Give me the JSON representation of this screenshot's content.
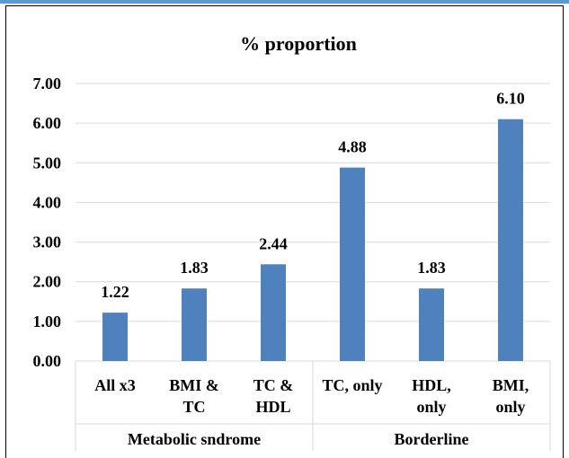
{
  "chart_data": {
    "type": "bar",
    "title": "% proportion",
    "xlabel": "",
    "ylabel": "",
    "ylim": [
      0,
      7
    ],
    "yticks": [
      "0.00",
      "1.00",
      "2.00",
      "3.00",
      "4.00",
      "5.00",
      "6.00",
      "7.00"
    ],
    "grid": true,
    "categories": [
      [
        "All x3"
      ],
      [
        "BMI &",
        "TC"
      ],
      [
        "TC &",
        "HDL"
      ],
      [
        "TC, only"
      ],
      [
        "HDL,",
        "only"
      ],
      [
        "BMI,",
        "only"
      ]
    ],
    "values": [
      1.22,
      1.83,
      2.44,
      4.88,
      1.83,
      6.1
    ],
    "data_labels": [
      "1.22",
      "1.83",
      "2.44",
      "4.88",
      "1.83",
      "6.10"
    ],
    "groups": [
      {
        "label": "Metabolic sndrome",
        "categories": 3
      },
      {
        "label": "Borderline",
        "categories": 3
      }
    ],
    "bar_color": "#4f81bd"
  }
}
